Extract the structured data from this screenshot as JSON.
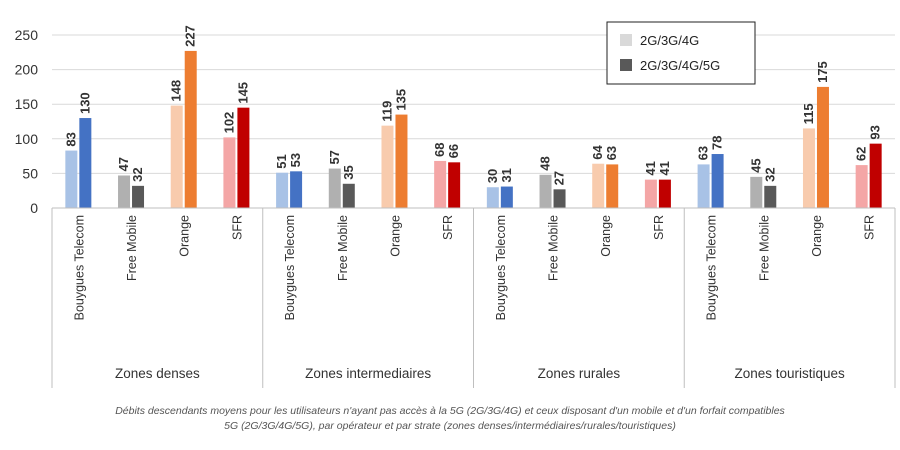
{
  "chart_data": {
    "type": "bar",
    "groups": [
      {
        "label": "Zones denses",
        "operators": [
          {
            "name": "Bouygues Telecom",
            "values": [
              83,
              130
            ]
          },
          {
            "name": "Free Mobile",
            "values": [
              47,
              32
            ]
          },
          {
            "name": "Orange",
            "values": [
              148,
              227
            ]
          },
          {
            "name": "SFR",
            "values": [
              102,
              145
            ]
          }
        ]
      },
      {
        "label": "Zones intermediaires",
        "operators": [
          {
            "name": "Bouygues Telecom",
            "values": [
              51,
              53
            ]
          },
          {
            "name": "Free Mobile",
            "values": [
              57,
              35
            ]
          },
          {
            "name": "Orange",
            "values": [
              119,
              135
            ]
          },
          {
            "name": "SFR",
            "values": [
              68,
              66
            ]
          }
        ]
      },
      {
        "label": "Zones rurales",
        "operators": [
          {
            "name": "Bouygues Telecom",
            "values": [
              30,
              31
            ]
          },
          {
            "name": "Free Mobile",
            "values": [
              48,
              27
            ]
          },
          {
            "name": "Orange",
            "values": [
              64,
              63
            ]
          },
          {
            "name": "SFR",
            "values": [
              41,
              41
            ]
          }
        ]
      },
      {
        "label": "Zones touristiques",
        "operators": [
          {
            "name": "Bouygues Telecom",
            "values": [
              63,
              78
            ]
          },
          {
            "name": "Free Mobile",
            "values": [
              45,
              32
            ]
          },
          {
            "name": "Orange",
            "values": [
              115,
              175
            ]
          },
          {
            "name": "SFR",
            "values": [
              62,
              93
            ]
          }
        ]
      }
    ],
    "series": [
      {
        "name": "2G/3G/4G",
        "legend_color": "#d9d9d9"
      },
      {
        "name": "2G/3G/4G/5G",
        "legend_color": "#595959"
      }
    ],
    "operator_colors": {
      "Bouygues Telecom": [
        "#a8c2e6",
        "#4472c4"
      ],
      "Free Mobile": [
        "#b0b0b0",
        "#595959"
      ],
      "Orange": [
        "#f8cbad",
        "#ed7d31"
      ],
      "SFR": [
        "#f4a6a6",
        "#c00000"
      ]
    },
    "yticks": [
      0,
      50,
      100,
      150,
      200,
      250
    ],
    "ylim": [
      0,
      250
    ],
    "legend_position": "top-right",
    "grid": true
  },
  "caption": {
    "line1": "Débits descendants moyens pour les utilisateurs n'ayant pas accès à la 5G (2G/3G/4G) et ceux disposant d'un mobile et d'un forfait compatibles",
    "line2": "5G (2G/3G/4G/5G), par opérateur et par strate (zones denses/intermédiaires/rurales/touristiques)"
  }
}
